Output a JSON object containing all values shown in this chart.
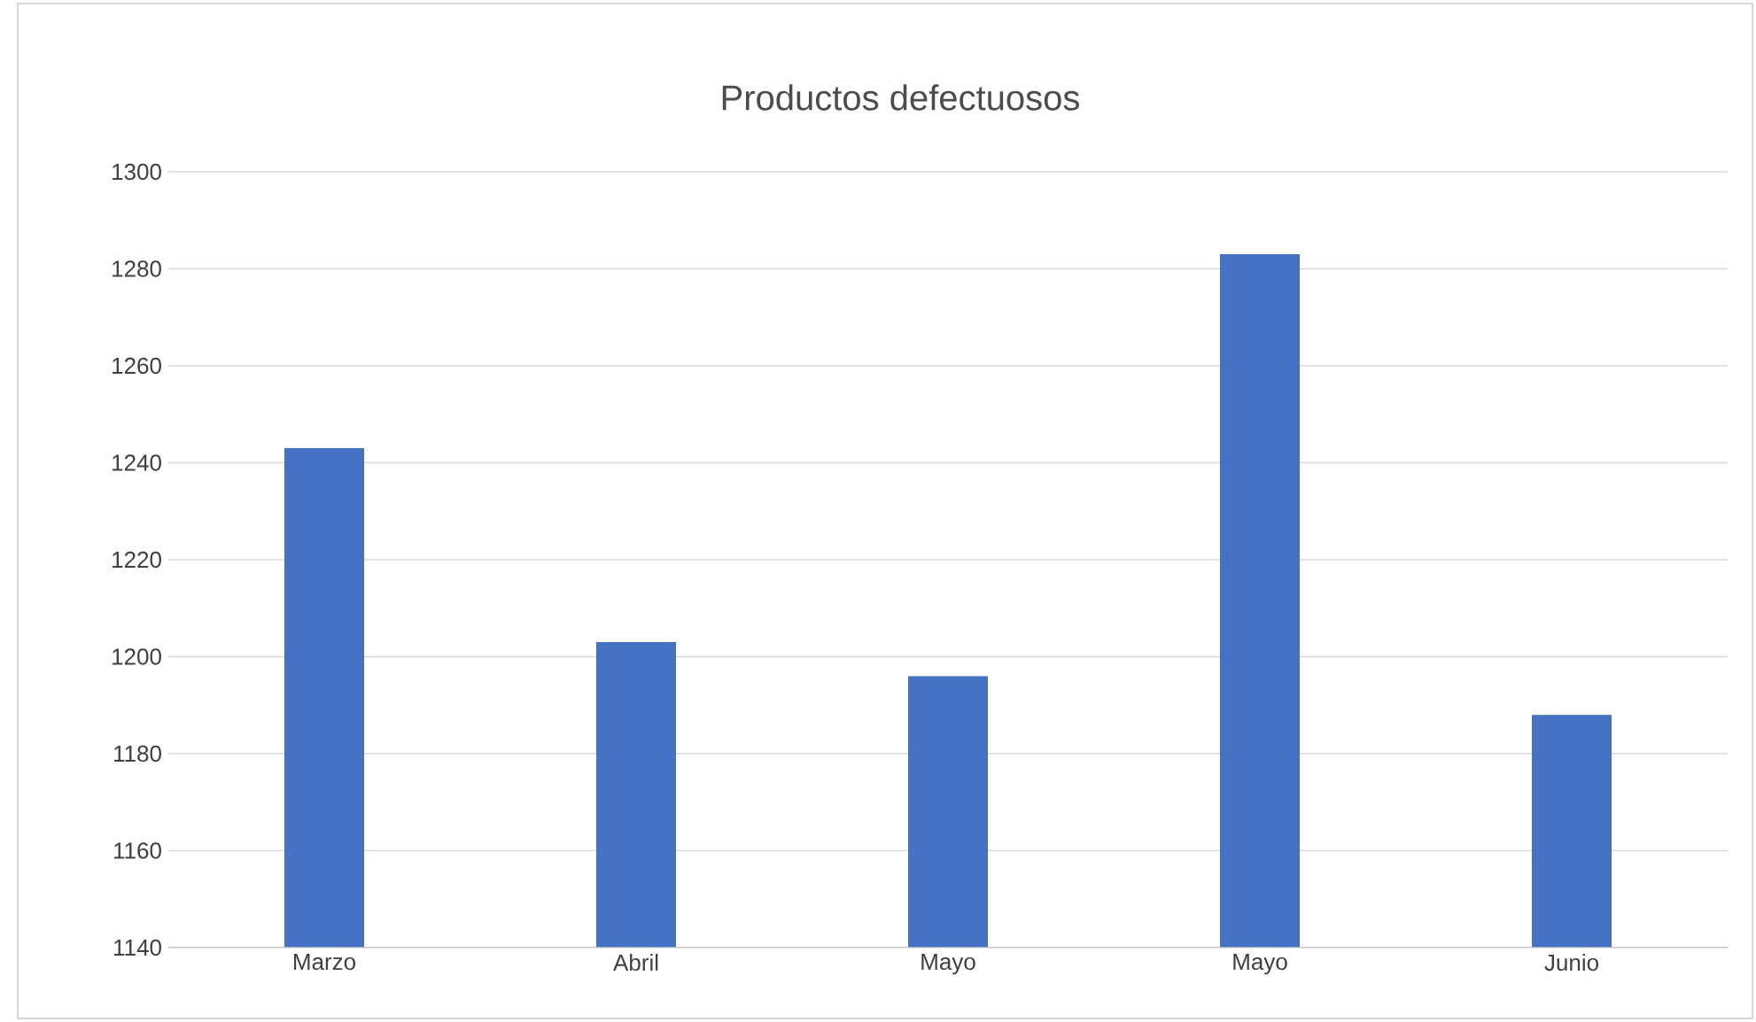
{
  "chart_data": {
    "type": "bar",
    "title": "Productos defectuosos",
    "categories": [
      "Marzo",
      "Abril",
      "Mayo",
      "Mayo",
      "Junio"
    ],
    "values": [
      1243,
      1203,
      1196,
      1283,
      1188
    ],
    "color": "#4472c4",
    "ylim": [
      1140,
      1300
    ],
    "yticks": [
      1140,
      1160,
      1180,
      1200,
      1220,
      1240,
      1260,
      1280,
      1300
    ],
    "grid": "y"
  }
}
